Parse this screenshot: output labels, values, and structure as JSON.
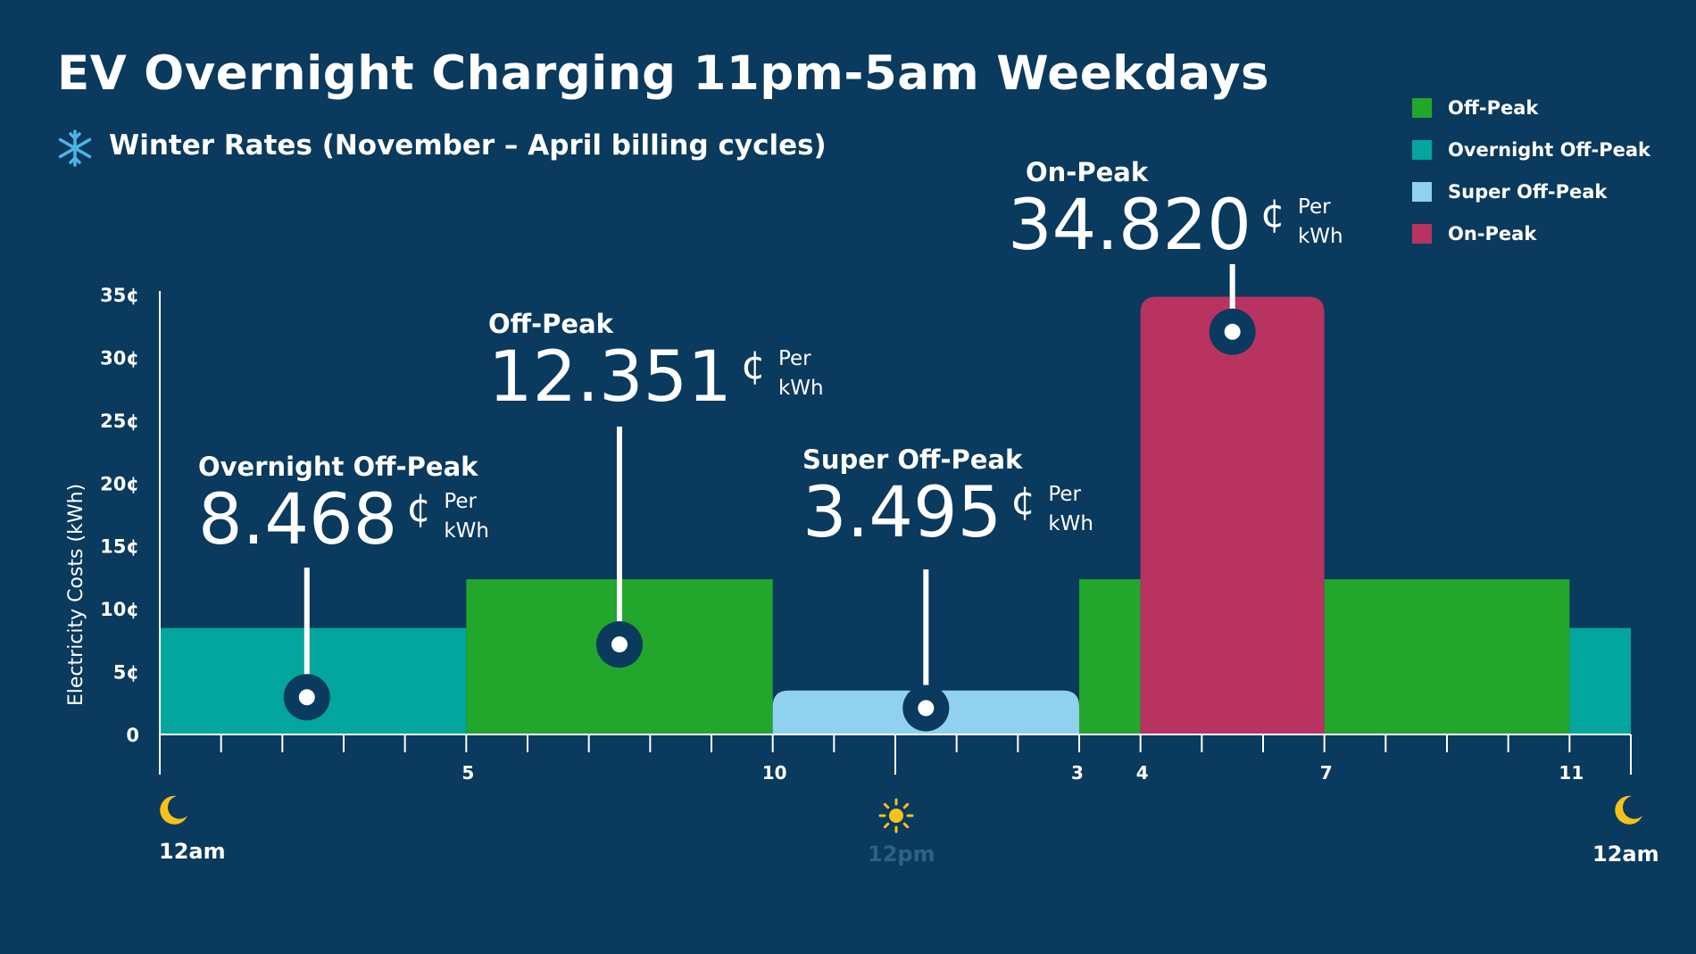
{
  "title": "EV Overnight Charging 11pm-5am Weekdays",
  "subtitle": "Winter Rates (November – April billing cycles)",
  "icons": {
    "season": "snowflake-icon",
    "night": "moon-icon",
    "day": "sun-icon"
  },
  "legend": [
    {
      "label": "Off-Peak",
      "color": "#22a62c"
    },
    {
      "label": "Overnight Off-Peak",
      "color": "#02a69c"
    },
    {
      "label": "Super Off-Peak",
      "color": "#8fd1ee"
    },
    {
      "label": "On-Peak",
      "color": "#b93361"
    }
  ],
  "time_labels": {
    "start": "12am",
    "noon": "12pm",
    "end": "12am"
  },
  "chart_data": {
    "type": "bar",
    "ylabel": "Electricity Costs (kWh)",
    "ylim": [
      0,
      35
    ],
    "yticks": [
      "0",
      "5¢",
      "10¢",
      "15¢",
      "20¢",
      "25¢",
      "30¢",
      "35¢"
    ],
    "xlim": [
      0,
      24
    ],
    "xtick_labels": [
      {
        "x": 5,
        "label": "5"
      },
      {
        "x": 10,
        "label": "10"
      },
      {
        "x": 15,
        "label": "3"
      },
      {
        "x": 16,
        "label": "4"
      },
      {
        "x": 19,
        "label": "7"
      },
      {
        "x": 23,
        "label": "11"
      }
    ],
    "segments": [
      {
        "period": "Overnight Off-Peak",
        "start": 0,
        "end": 5,
        "value": 8.468
      },
      {
        "period": "Off-Peak",
        "start": 5,
        "end": 10,
        "value": 12.351
      },
      {
        "period": "Super Off-Peak",
        "start": 10,
        "end": 15,
        "value": 3.495
      },
      {
        "period": "Off-Peak",
        "start": 15,
        "end": 16,
        "value": 12.351
      },
      {
        "period": "On-Peak",
        "start": 16,
        "end": 19,
        "value": 34.82
      },
      {
        "period": "Off-Peak",
        "start": 19,
        "end": 23,
        "value": 12.351
      },
      {
        "period": "Overnight Off-Peak",
        "start": 23,
        "end": 24,
        "value": 8.468
      }
    ],
    "annotations": [
      {
        "name": "Overnight Off-Peak",
        "value": "8.468",
        "cent": "¢",
        "unit": "Per\nkWh"
      },
      {
        "name": "Off-Peak",
        "value": "12.351",
        "cent": "¢",
        "unit": "Per\nkWh"
      },
      {
        "name": "Super Off-Peak",
        "value": "3.495",
        "cent": "¢",
        "unit": "Per\nkWh"
      },
      {
        "name": "On-Peak",
        "value": "34.820",
        "cent": "¢",
        "unit": "Per\nkWh"
      }
    ]
  }
}
